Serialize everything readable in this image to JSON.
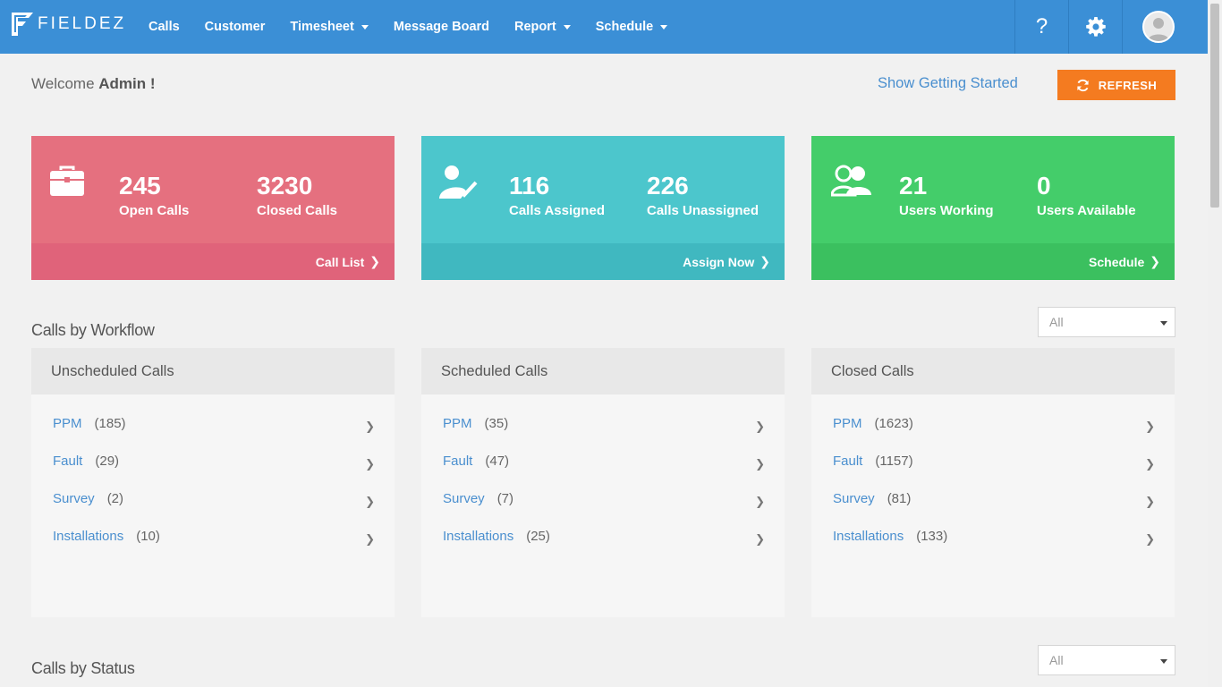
{
  "brand": {
    "name": "FIELDEZ"
  },
  "nav": {
    "items": [
      {
        "label": "Calls",
        "dropdown": false
      },
      {
        "label": "Customer",
        "dropdown": false
      },
      {
        "label": "Timesheet",
        "dropdown": true
      },
      {
        "label": "Message Board",
        "dropdown": false
      },
      {
        "label": "Report",
        "dropdown": true
      },
      {
        "label": "Schedule",
        "dropdown": true
      }
    ],
    "help_label": "?"
  },
  "header": {
    "welcome_prefix": "Welcome ",
    "welcome_user": "Admin !",
    "getting_started": "Show Getting Started",
    "refresh_label": "REFRESH"
  },
  "cards": [
    {
      "icon": "briefcase-icon",
      "stat1_value": "245",
      "stat1_label": "Open Calls",
      "stat2_value": "3230",
      "stat2_label": "Closed Calls",
      "footer": "Call List",
      "color": "#e5707f"
    },
    {
      "icon": "user-check-icon",
      "stat1_value": "116",
      "stat1_label": "Calls Assigned",
      "stat2_value": "226",
      "stat2_label": "Calls Unassigned",
      "footer": "Assign Now",
      "color": "#4cc6cc"
    },
    {
      "icon": "users-icon",
      "stat1_value": "21",
      "stat1_label": "Users Working",
      "stat2_value": "0",
      "stat2_label": "Users Available",
      "footer": "Schedule",
      "color": "#44cd6a"
    }
  ],
  "workflow": {
    "title": "Calls by Workflow",
    "filter_value": "All",
    "panels": [
      {
        "title": "Unscheduled Calls",
        "rows": [
          {
            "name": "PPM",
            "count": "(185)"
          },
          {
            "name": "Fault",
            "count": "(29)"
          },
          {
            "name": "Survey",
            "count": "(2)"
          },
          {
            "name": "Installations",
            "count": "(10)"
          }
        ]
      },
      {
        "title": "Scheduled Calls",
        "rows": [
          {
            "name": "PPM",
            "count": "(35)"
          },
          {
            "name": "Fault",
            "count": "(47)"
          },
          {
            "name": "Survey",
            "count": "(7)"
          },
          {
            "name": "Installations",
            "count": "(25)"
          }
        ]
      },
      {
        "title": "Closed Calls",
        "rows": [
          {
            "name": "PPM",
            "count": "(1623)"
          },
          {
            "name": "Fault",
            "count": "(1157)"
          },
          {
            "name": "Survey",
            "count": "(81)"
          },
          {
            "name": "Installations",
            "count": "(133)"
          }
        ]
      }
    ]
  },
  "status": {
    "title": "Calls by Status",
    "filter_value": "All"
  }
}
